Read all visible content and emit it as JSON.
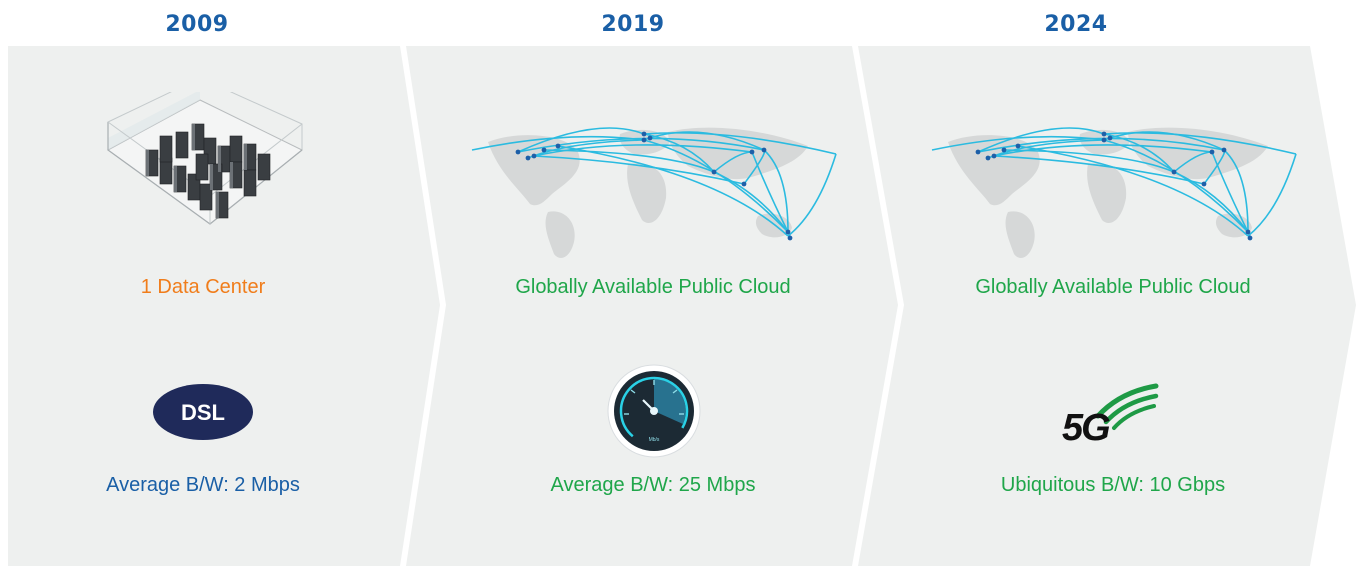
{
  "colors": {
    "panel_bg": "#eef0ef",
    "year_blue": "#1a5fa6",
    "orange": "#f07d1b",
    "green": "#1fa64a",
    "blue_text": "#1a5fa6",
    "network_line": "#2bbbe0",
    "map_gray": "#d6d8d8"
  },
  "stages": [
    {
      "year": "2009",
      "infrastructure": {
        "label": "1 Data Center",
        "icon": "data-center-icon"
      },
      "bandwidth": {
        "label": "Average B/W: 2 Mbps",
        "icon": "dsl-icon",
        "badge_text": "DSL"
      }
    },
    {
      "year": "2019",
      "infrastructure": {
        "label": "Globally Available Public Cloud",
        "icon": "world-network-map-icon"
      },
      "bandwidth": {
        "label": "Average B/W: 25 Mbps",
        "icon": "speedometer-icon",
        "gauge_unit": "Mb/s"
      }
    },
    {
      "year": "2024",
      "infrastructure": {
        "label": "Globally Available Public Cloud",
        "icon": "world-network-map-icon"
      },
      "bandwidth": {
        "label": "Ubiquitous B/W: 10 Gbps",
        "icon": "5g-logo-icon",
        "logo_text": "5G"
      }
    }
  ]
}
